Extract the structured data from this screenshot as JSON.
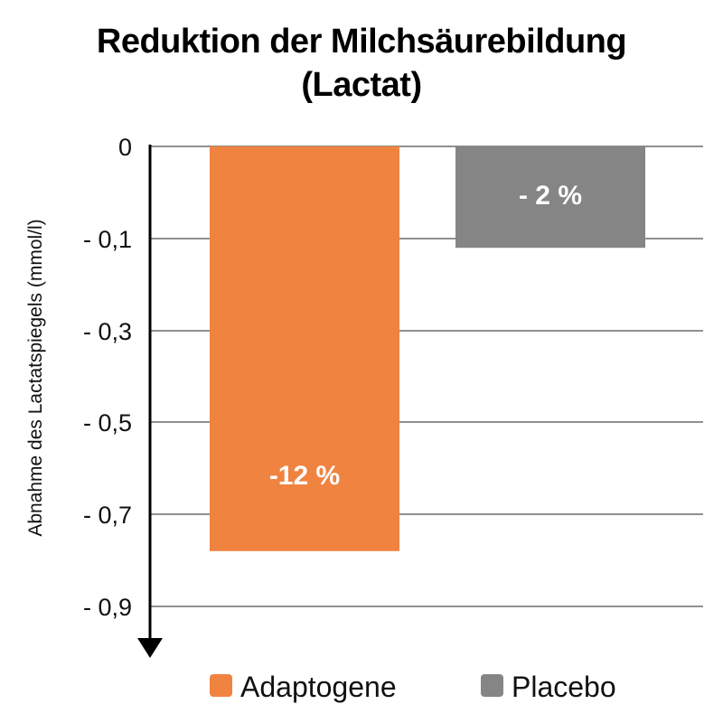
{
  "chart_data": {
    "type": "bar",
    "title_lines": [
      "Reduktion der Milchsäurebildung",
      "(Lactat)"
    ],
    "ylabel": "Abnahme des Lactatspiegels (mmol/l)",
    "y_ticks": [
      0,
      -0.1,
      -0.3,
      -0.5,
      -0.7,
      -0.9
    ],
    "y_tick_labels": [
      "0",
      "- 0,1",
      "- 0,3",
      "- 0,5",
      "- 0,7",
      "- 0,9"
    ],
    "ylim": [
      -0.9,
      0
    ],
    "grid": true,
    "legend_position": "bottom",
    "series": [
      {
        "name": "Adaptogene",
        "value": -0.78,
        "label": "-12 %",
        "color": "#F0833F"
      },
      {
        "name": "Placebo",
        "value": -0.12,
        "label": "- 2 %",
        "color": "#858585"
      }
    ]
  }
}
